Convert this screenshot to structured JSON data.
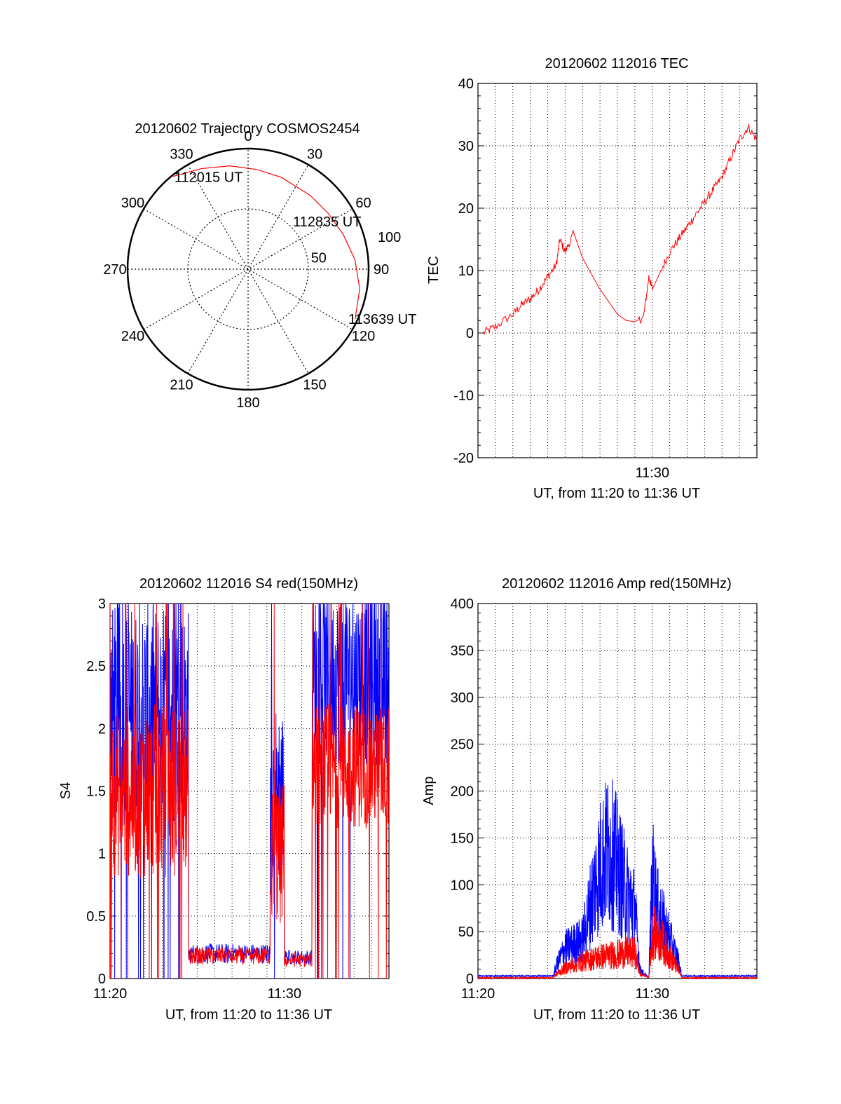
{
  "colors": {
    "red": "#ff0000",
    "blue": "#0000ff",
    "axis": "#000000"
  },
  "chart_data": [
    {
      "type": "polar",
      "title": "20120602 Trajectory COSMOS2454",
      "angle_labels": [
        "0",
        "30",
        "60",
        "90",
        "120",
        "150",
        "180",
        "210",
        "240",
        "270",
        "300",
        "330"
      ],
      "radial_labels": [
        "50",
        "100"
      ],
      "radial_values": [
        50,
        100
      ],
      "rlim": [
        0,
        100
      ],
      "trajectory": {
        "color": "red",
        "points": [
          {
            "az": 321,
            "el_r": 99,
            "label": "112015 UT"
          },
          {
            "az": 335,
            "el_r": 92
          },
          {
            "az": 350,
            "el_r": 87
          },
          {
            "az": 5,
            "el_r": 83
          },
          {
            "az": 20,
            "el_r": 81
          },
          {
            "az": 40,
            "el_r": 80
          },
          {
            "az": 55,
            "el_r": 81
          },
          {
            "az": 70,
            "el_r": 84
          },
          {
            "az": 85,
            "el_r": 89
          },
          {
            "az": 100,
            "el_r": 94
          },
          {
            "az": 115,
            "el_r": 98
          }
        ],
        "annotations": [
          {
            "text": "112015 UT"
          },
          {
            "text": "112835 UT"
          },
          {
            "text": "113639 UT"
          }
        ]
      }
    },
    {
      "type": "line",
      "title": "20120602 112016 TEC",
      "ylabel": "TEC",
      "xlabel": "UT, from 11:20 to 11:36 UT",
      "xlim_min": [
        0,
        16
      ],
      "ylim": [
        -20,
        40
      ],
      "yticks": [
        "-20",
        "-10",
        "0",
        "10",
        "20",
        "30",
        "40"
      ],
      "xtick_labels": [
        {
          "x": 10,
          "label": "11:30"
        }
      ],
      "grid": true,
      "series": [
        {
          "color": "red",
          "x": [
            0.3,
            1,
            2,
            2.5,
            3,
            3.5,
            4,
            4.5,
            4.7,
            5,
            5.5,
            6,
            7,
            8,
            8.5,
            9,
            9.5,
            9.8,
            10,
            10.5,
            11,
            11.5,
            12,
            12.5,
            13,
            13.5,
            14,
            14.5,
            15,
            15.5,
            16
          ],
          "y": [
            0,
            1,
            3,
            4.5,
            5.5,
            7,
            9,
            11,
            15,
            13,
            16,
            12,
            7,
            3,
            2,
            1.8,
            2.5,
            9,
            7,
            10,
            13,
            15,
            17,
            19,
            21,
            23,
            25,
            28,
            31,
            33,
            31
          ]
        }
      ]
    },
    {
      "type": "line",
      "title": "20120602 112016 S4 red(150MHz)",
      "ylabel": "S4",
      "xlabel": "UT, from 11:20 to 11:36 UT",
      "xlim_min": [
        0,
        16
      ],
      "ylim": [
        0,
        3
      ],
      "yticks": [
        "0",
        "0.5",
        "1",
        "1.5",
        "2",
        "2.5",
        "3"
      ],
      "xtick_labels": [
        {
          "x": 0,
          "label": "11:20"
        },
        {
          "x": 10,
          "label": "11:30"
        }
      ],
      "grid": true,
      "series": [
        {
          "color": "blue",
          "segments": [
            {
              "x0": 0,
              "x1": 4.5,
              "base": 2.1,
              "amp": 0.9,
              "noise": "high"
            },
            {
              "x0": 4.5,
              "x1": 9.2,
              "base": 0.2,
              "amp": 0.08,
              "noise": "low"
            },
            {
              "x0": 9.2,
              "x1": 10.0,
              "base": 1.5,
              "amp": 0.7,
              "noise": "high"
            },
            {
              "x0": 10.0,
              "x1": 11.6,
              "base": 0.17,
              "amp": 0.06,
              "noise": "low"
            },
            {
              "x0": 11.6,
              "x1": 16,
              "base": 2.4,
              "amp": 0.7,
              "noise": "high"
            }
          ]
        },
        {
          "color": "red",
          "segments": [
            {
              "x0": 0,
              "x1": 4.5,
              "base": 1.5,
              "amp": 0.7,
              "noise": "high"
            },
            {
              "x0": 4.5,
              "x1": 9.2,
              "base": 0.18,
              "amp": 0.07,
              "noise": "low"
            },
            {
              "x0": 9.2,
              "x1": 10.0,
              "base": 1.0,
              "amp": 0.6,
              "noise": "high"
            },
            {
              "x0": 10.0,
              "x1": 11.6,
              "base": 0.15,
              "amp": 0.06,
              "noise": "low"
            },
            {
              "x0": 11.6,
              "x1": 16,
              "base": 1.7,
              "amp": 0.5,
              "noise": "high"
            }
          ]
        }
      ]
    },
    {
      "type": "line",
      "title": "20120602 112016 Amp red(150MHz)",
      "ylabel": "Amp",
      "xlabel": "UT, from 11:20 to 11:36 UT",
      "xlim_min": [
        0,
        16
      ],
      "ylim": [
        0,
        400
      ],
      "yticks": [
        "0",
        "50",
        "100",
        "150",
        "200",
        "250",
        "300",
        "350",
        "400"
      ],
      "xtick_labels": [
        {
          "x": 0,
          "label": "11:20"
        },
        {
          "x": 10,
          "label": "11:30"
        }
      ],
      "grid": true,
      "series": [
        {
          "color": "blue",
          "envelope": [
            [
              0,
              2
            ],
            [
              4.3,
              2
            ],
            [
              4.5,
              15
            ],
            [
              5,
              35
            ],
            [
              6,
              45
            ],
            [
              6.5,
              90
            ],
            [
              7,
              130
            ],
            [
              7.5,
              150
            ],
            [
              8,
              130
            ],
            [
              8.5,
              100
            ],
            [
              9,
              80
            ],
            [
              9.3,
              10
            ],
            [
              9.8,
              0
            ],
            [
              10,
              120
            ],
            [
              10.3,
              80
            ],
            [
              11,
              45
            ],
            [
              11.5,
              20
            ],
            [
              11.7,
              2
            ],
            [
              16,
              2
            ]
          ]
        },
        {
          "color": "red",
          "envelope": [
            [
              0,
              0
            ],
            [
              4.3,
              0
            ],
            [
              4.5,
              5
            ],
            [
              5,
              12
            ],
            [
              6,
              20
            ],
            [
              7,
              25
            ],
            [
              8,
              28
            ],
            [
              8.5,
              30
            ],
            [
              9,
              30
            ],
            [
              9.3,
              5
            ],
            [
              9.8,
              0
            ],
            [
              10,
              55
            ],
            [
              10.5,
              45
            ],
            [
              11,
              25
            ],
            [
              11.5,
              10
            ],
            [
              11.7,
              0
            ],
            [
              16,
              0
            ]
          ]
        }
      ]
    }
  ]
}
